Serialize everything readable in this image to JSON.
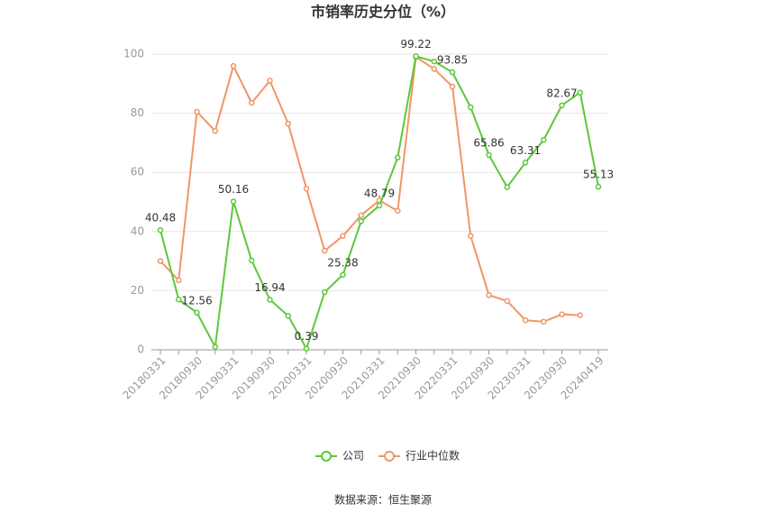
{
  "chart_data": {
    "type": "line",
    "title": "市销率历史分位（%）",
    "source": "数据来源：恒生聚源",
    "categories": [
      "20180331",
      null,
      "20180930",
      null,
      "20190331",
      null,
      "20190930",
      null,
      "20200331",
      null,
      "20200930",
      null,
      "20210331",
      null,
      "20210930",
      null,
      "20220331",
      null,
      "20220930",
      null,
      "20230331",
      null,
      "20230930",
      null,
      "20240419"
    ],
    "series": [
      {
        "name": "公司",
        "color": "#5cc83a",
        "values": [
          40.48,
          17,
          12.56,
          1,
          50.16,
          30.2,
          16.94,
          11.5,
          0.39,
          19.5,
          25.38,
          43.5,
          48.79,
          65,
          99.22,
          97.5,
          93.85,
          82,
          65.86,
          55,
          63.31,
          71,
          82.67,
          87,
          55.13
        ],
        "value_labels": [
          "40.48",
          null,
          "12.56",
          null,
          "50.16",
          null,
          "16.94",
          null,
          "0.39",
          null,
          "25.38",
          null,
          "48.79",
          null,
          "99.22",
          null,
          "93.85",
          null,
          "65.86",
          null,
          "63.31",
          null,
          "82.67",
          null,
          "55.13"
        ]
      },
      {
        "name": "行业中位数",
        "color": "#f0956a",
        "values": [
          30,
          23.5,
          80.5,
          74,
          96,
          83.5,
          91,
          76.5,
          54.5,
          33.5,
          38.5,
          45.5,
          50.5,
          47,
          99,
          95,
          89,
          38.5,
          18.5,
          16.5,
          10,
          9.5,
          12,
          11.7,
          null
        ]
      }
    ],
    "ylim": [
      0,
      100
    ],
    "yticks": [
      0,
      20,
      40,
      60,
      80,
      100
    ],
    "grid": true
  }
}
